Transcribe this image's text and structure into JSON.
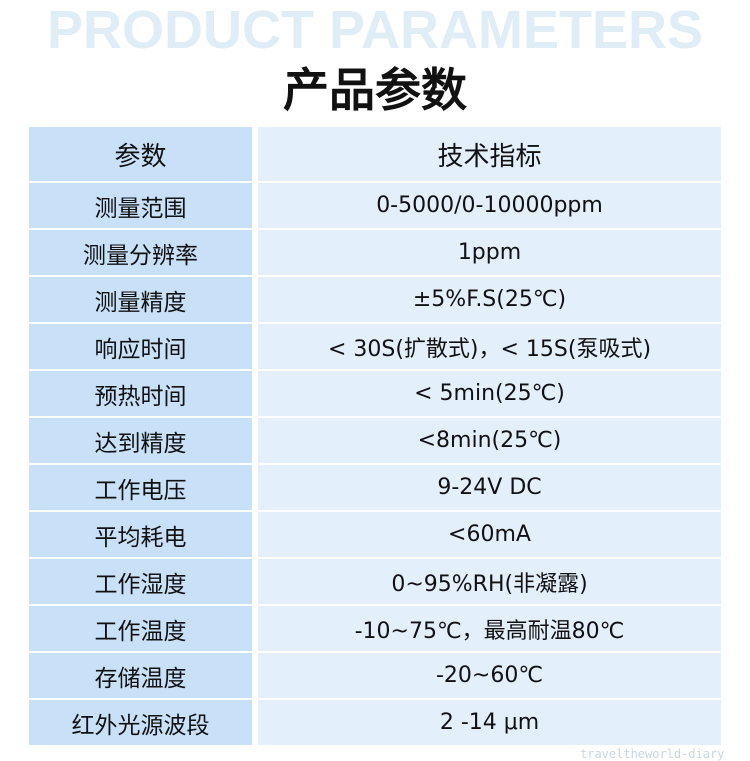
{
  "background_title": "PRODUCT PARAMETERS",
  "title": "产品参数",
  "table": {
    "headers": [
      "参数",
      "技术指标"
    ],
    "rows": [
      [
        "测量范围",
        "0-5000/0-10000ppm"
      ],
      [
        "测量分辨率",
        "1ppm"
      ],
      [
        "测量精度",
        "±5%F.S(25℃)"
      ],
      [
        "响应时间",
        "< 30S(扩散式)，< 15S(泵吸式)"
      ],
      [
        "预热时间",
        "< 5min(25℃)"
      ],
      [
        "达到精度",
        "<8min(25℃)"
      ],
      [
        "工作电压",
        "9-24V DC"
      ],
      [
        "平均耗电",
        "<60mA"
      ],
      [
        "工作湿度",
        "0~95%RH(非凝露)"
      ],
      [
        "工作温度",
        "-10~75℃，最高耐温80℃"
      ],
      [
        "存储温度",
        "-20~60℃"
      ],
      [
        "红外光源波段",
        "2 -14 μm"
      ]
    ]
  },
  "watermark": "traveltheworld-diary",
  "colors": {
    "param_column": "#c8e1f8",
    "value_column": "#e3f0fc",
    "background_title": "#deedf6"
  }
}
